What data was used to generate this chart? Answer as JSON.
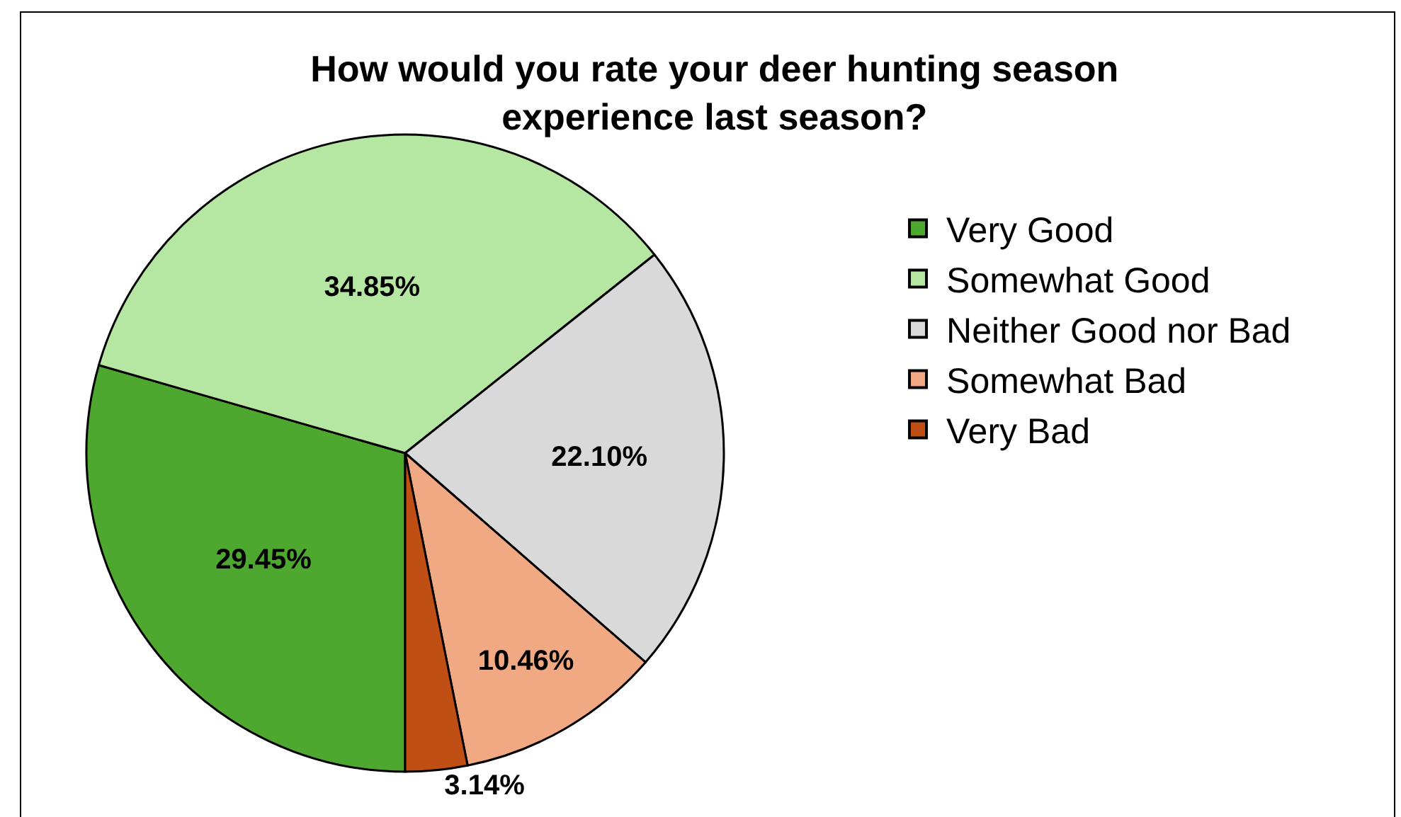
{
  "chart_data": {
    "type": "pie",
    "title": "How would you rate your deer hunting season experience last season?",
    "categories": [
      "Very Good",
      "Somewhat Good",
      "Neither Good nor Bad",
      "Somewhat Bad",
      "Very Bad"
    ],
    "values": [
      29.45,
      34.85,
      22.1,
      10.46,
      3.14
    ],
    "value_labels": [
      "29.45%",
      "34.85%",
      "22.10%",
      "10.46%",
      "3.14%"
    ],
    "colors": [
      "#4ea72e",
      "#b5e6a2",
      "#d9d9d9",
      "#f1a983",
      "#c04f15"
    ],
    "legend": "right"
  }
}
